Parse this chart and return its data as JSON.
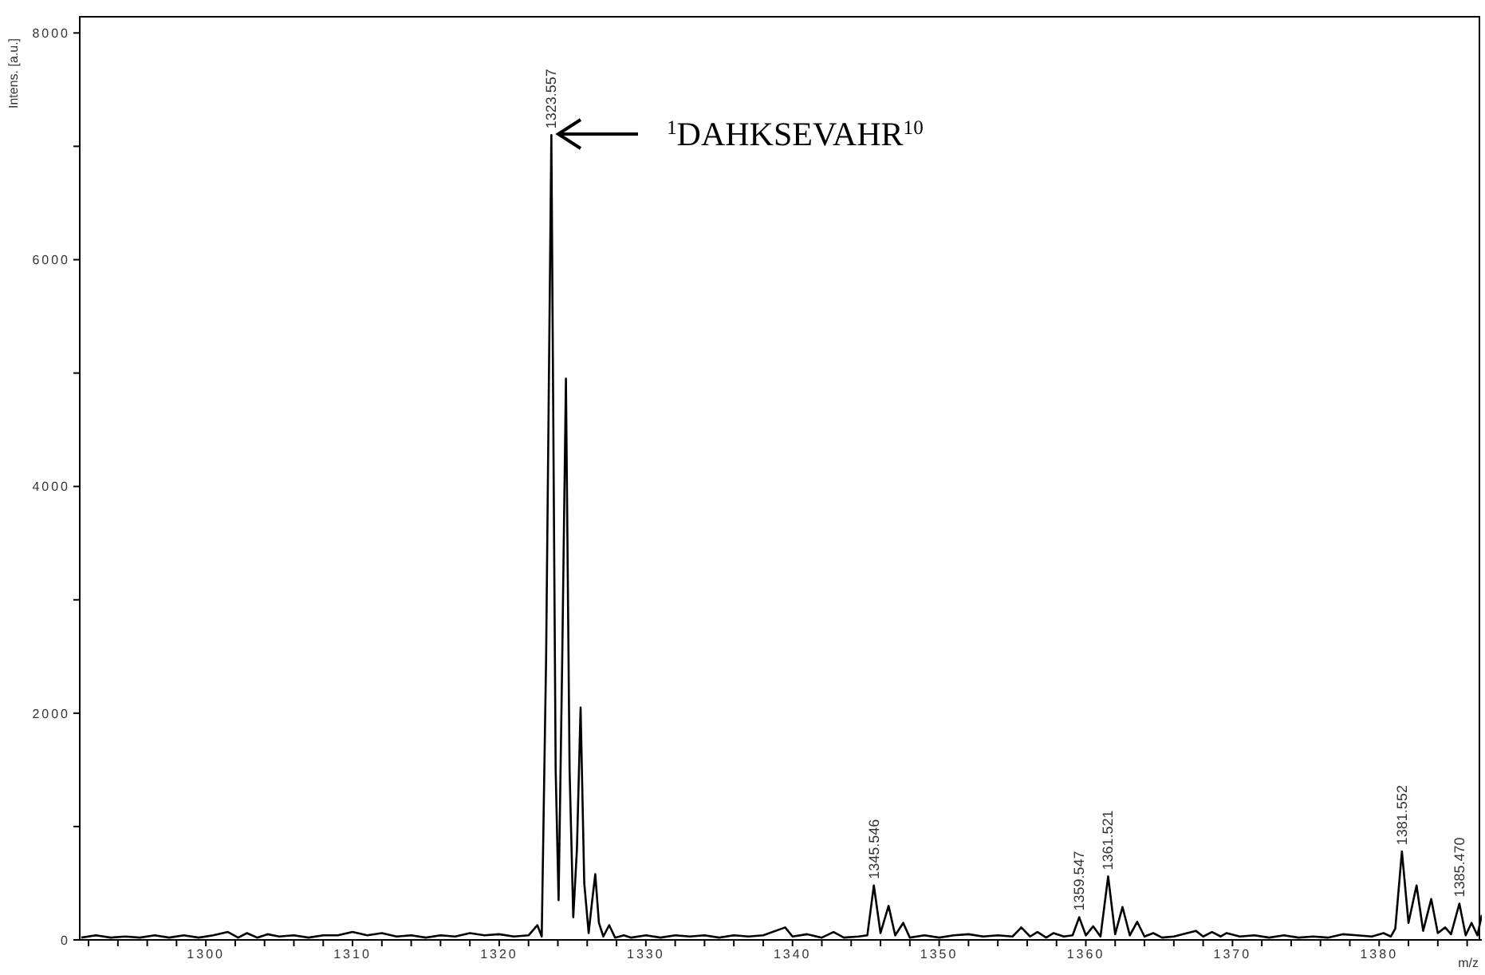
{
  "chart_data": {
    "type": "line",
    "xlabel": "m/z",
    "ylabel": "Intens. [a.u.]",
    "x": [
      1291.5,
      1292.5,
      1293.5,
      1294.5,
      1295.5,
      1296.5,
      1297.5,
      1298.5,
      1299.5,
      1300.5,
      1301.5,
      1302.2,
      1302.8,
      1303.5,
      1304.2,
      1305,
      1306,
      1307,
      1308,
      1309,
      1310,
      1311,
      1312,
      1313,
      1314,
      1315,
      1316,
      1317,
      1318,
      1319,
      1320,
      1321,
      1322,
      1322.6,
      1322.9,
      1323.2,
      1323.557,
      1323.85,
      1324.05,
      1324.3,
      1324.55,
      1324.8,
      1325.05,
      1325.3,
      1325.55,
      1325.8,
      1326.1,
      1326.3,
      1326.55,
      1326.8,
      1327.1,
      1327.5,
      1327.9,
      1328.5,
      1329,
      1330,
      1331,
      1332,
      1333,
      1334,
      1335,
      1336,
      1337,
      1338,
      1339.5,
      1340,
      1341,
      1342,
      1342.8,
      1343.5,
      1344.5,
      1345.1,
      1345.546,
      1346,
      1346.55,
      1347,
      1347.55,
      1348,
      1349,
      1350,
      1351,
      1352,
      1353,
      1354,
      1355,
      1355.6,
      1356.2,
      1356.7,
      1357.3,
      1357.8,
      1358.5,
      1359.1,
      1359.547,
      1360,
      1360.5,
      1361,
      1361.521,
      1362,
      1362.5,
      1363,
      1363.5,
      1364,
      1364.6,
      1365.2,
      1366,
      1367.5,
      1368,
      1368.6,
      1369.2,
      1369.6,
      1370.5,
      1371.5,
      1372.5,
      1373.5,
      1374.5,
      1375.5,
      1376.5,
      1377.5,
      1378.5,
      1379.5,
      1380.3,
      1380.8,
      1381.1,
      1381.552,
      1382,
      1382.55,
      1383,
      1383.55,
      1384,
      1384.5,
      1384.9,
      1385.47,
      1385.9,
      1386.3,
      1386.7,
      1387
    ],
    "series": [
      {
        "color": "#000000",
        "values": [
          20,
          40,
          20,
          30,
          20,
          40,
          20,
          40,
          20,
          40,
          70,
          20,
          60,
          20,
          50,
          30,
          40,
          20,
          40,
          40,
          70,
          40,
          60,
          30,
          40,
          20,
          40,
          30,
          60,
          40,
          50,
          30,
          40,
          130,
          30,
          2500,
          7100,
          1500,
          350,
          2500,
          4950,
          1500,
          200,
          800,
          2050,
          500,
          60,
          300,
          580,
          150,
          30,
          130,
          20,
          40,
          20,
          40,
          20,
          40,
          30,
          40,
          20,
          40,
          30,
          40,
          110,
          30,
          50,
          20,
          70,
          20,
          30,
          40,
          480,
          60,
          300,
          40,
          150,
          20,
          40,
          20,
          40,
          50,
          30,
          40,
          30,
          110,
          30,
          70,
          20,
          60,
          30,
          40,
          200,
          40,
          120,
          30,
          560,
          50,
          290,
          40,
          160,
          30,
          60,
          20,
          30,
          80,
          30,
          70,
          30,
          60,
          30,
          40,
          20,
          40,
          20,
          30,
          20,
          50,
          40,
          30,
          60,
          30,
          100,
          780,
          150,
          480,
          80,
          360,
          60,
          110,
          50,
          320,
          40,
          150,
          40,
          220
        ]
      }
    ],
    "xlim": [
      1291.4,
      1387
    ],
    "ylim": [
      0,
      8150
    ],
    "xticks": [
      {
        "value": 1292,
        "label": null
      },
      {
        "value": 1294,
        "label": null
      },
      {
        "value": 1296,
        "label": null
      },
      {
        "value": 1298,
        "label": null
      },
      1300,
      {
        "value": 1302,
        "label": null
      },
      {
        "value": 1304,
        "label": null
      },
      {
        "value": 1306,
        "label": null
      },
      {
        "value": 1308,
        "label": null
      },
      1310,
      {
        "value": 1312,
        "label": null
      },
      {
        "value": 1314,
        "label": null
      },
      {
        "value": 1316,
        "label": null
      },
      {
        "value": 1318,
        "label": null
      },
      1320,
      {
        "value": 1322,
        "label": null
      },
      {
        "value": 1324,
        "label": null
      },
      {
        "value": 1326,
        "label": null
      },
      {
        "value": 1328,
        "label": null
      },
      1330,
      {
        "value": 1332,
        "label": null
      },
      {
        "value": 1334,
        "label": null
      },
      {
        "value": 1336,
        "label": null
      },
      {
        "value": 1338,
        "label": null
      },
      1340,
      {
        "value": 1342,
        "label": null
      },
      {
        "value": 1344,
        "label": null
      },
      {
        "value": 1346,
        "label": null
      },
      {
        "value": 1348,
        "label": null
      },
      1350,
      {
        "value": 1352,
        "label": null
      },
      {
        "value": 1354,
        "label": null
      },
      {
        "value": 1356,
        "label": null
      },
      {
        "value": 1358,
        "label": null
      },
      1360,
      {
        "value": 1362,
        "label": null
      },
      {
        "value": 1364,
        "label": null
      },
      {
        "value": 1366,
        "label": null
      },
      {
        "value": 1368,
        "label": null
      },
      1370,
      {
        "value": 1372,
        "label": null
      },
      {
        "value": 1374,
        "label": null
      },
      {
        "value": 1376,
        "label": null
      },
      {
        "value": 1378,
        "label": null
      },
      1380,
      {
        "value": 1382,
        "label": null
      },
      {
        "value": 1384,
        "label": null
      },
      {
        "value": 1386,
        "label": null
      }
    ],
    "yticks": [
      0,
      {
        "value": 1000,
        "label": null
      },
      2000,
      {
        "value": 3000,
        "label": null
      },
      4000,
      {
        "value": 5000,
        "label": null
      },
      6000,
      {
        "value": 7000,
        "label": null
      },
      8000
    ],
    "grid": false,
    "marker": "none",
    "line_style": "solid",
    "annotations": [
      "$^{1}$DAHKSEVAHR$^{10}$",
      {
        "text": "1323.557",
        "x": 1323.557,
        "y": 7100
      },
      {
        "text": "1345.546",
        "x": 1345.546,
        "y": 480
      },
      {
        "text": "1359.547",
        "x": 1359.547,
        "y": 200
      },
      {
        "text": "1361.521",
        "x": 1361.521,
        "y": 560
      },
      {
        "text": "1381.552",
        "x": 1381.552,
        "y": 780
      },
      {
        "text": "1385.470",
        "x": 1385.47,
        "y": 320
      }
    ]
  }
}
